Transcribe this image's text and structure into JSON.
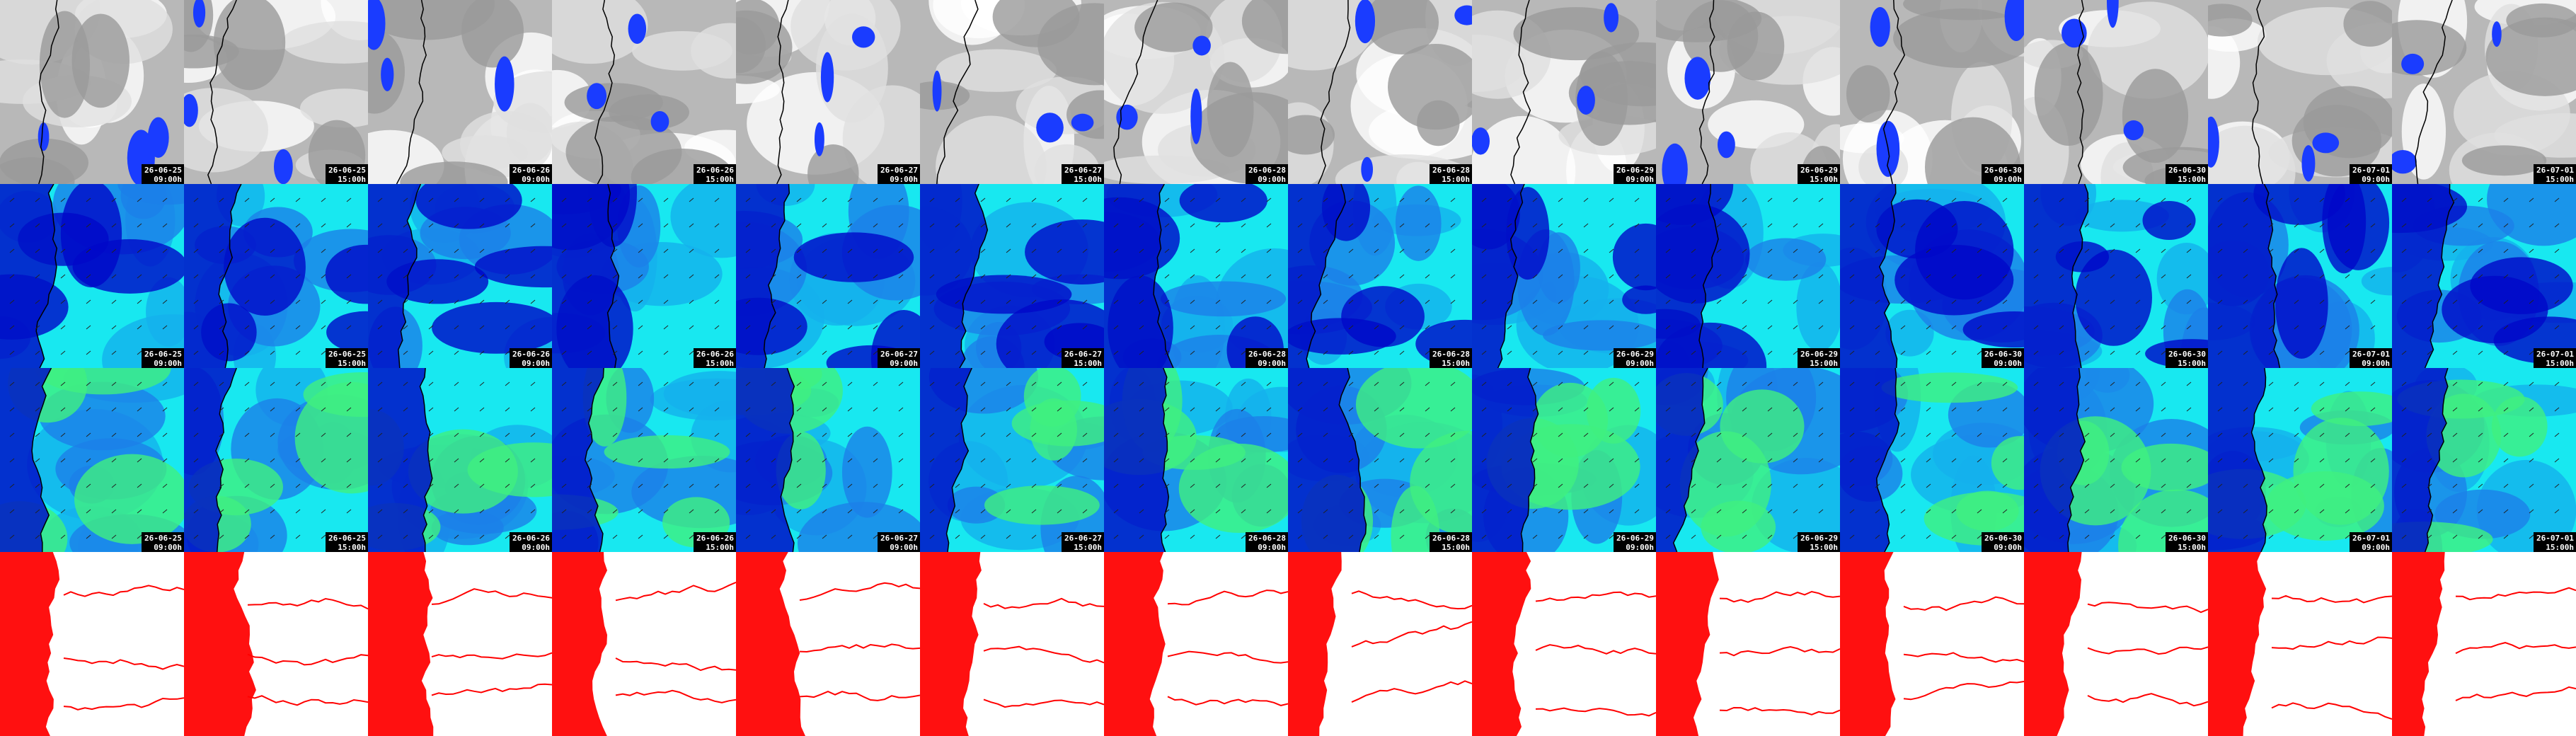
{
  "columns": [
    {
      "date": "26-06-25",
      "time": "09:00h"
    },
    {
      "date": "26-06-25",
      "time": "15:00h"
    },
    {
      "date": "26-06-26",
      "time": "09:00h"
    },
    {
      "date": "26-06-26",
      "time": "15:00h"
    },
    {
      "date": "26-06-27",
      "time": "09:00h"
    },
    {
      "date": "26-06-27",
      "time": "15:00h"
    },
    {
      "date": "26-06-28",
      "time": "09:00h"
    },
    {
      "date": "26-06-28",
      "time": "15:00h"
    },
    {
      "date": "26-06-29",
      "time": "09:00h"
    },
    {
      "date": "26-06-29",
      "time": "15:00h"
    },
    {
      "date": "26-06-30",
      "time": "09:00h"
    },
    {
      "date": "26-06-30",
      "time": "15:00h"
    },
    {
      "date": "26-07-01",
      "time": "09:00h"
    },
    {
      "date": "26-07-01",
      "time": "15:00h"
    }
  ]
}
